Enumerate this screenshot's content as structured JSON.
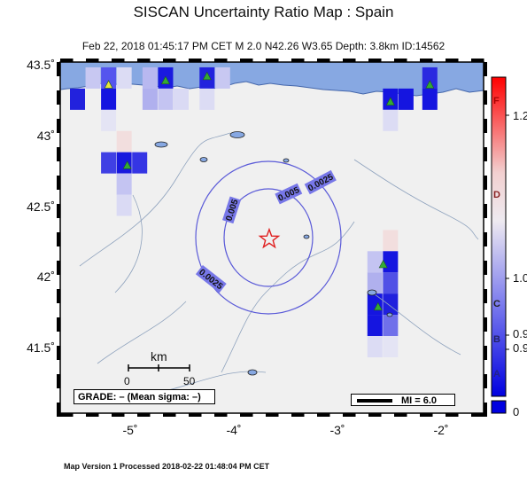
{
  "title": "SISCAN Uncertainty Ratio Map : Spain",
  "subtitle": "Feb 22, 2018 01:45:17 PM CET   M 2.0   N42.26 W3.65   Depth: 3.8km   ID:14562",
  "footer": "Map Version 1 Processed 2018-02-22 01:48:04 PM CET",
  "lat_labels": [
    "43.5˚",
    "43˚",
    "42.5˚",
    "42˚",
    "41.5˚"
  ],
  "lon_labels": [
    "-5˚",
    "-4˚",
    "-3˚",
    "-2˚"
  ],
  "contour_labels": [
    "0.0025",
    "0.005",
    "0.005",
    "0.0025"
  ],
  "grade_label": "GRADE: – (Mean sigma: –)",
  "mi_label": "MI = 6.0",
  "scale": {
    "title": "km",
    "zero": "0",
    "fifty": "50"
  },
  "colorbar": {
    "letters": [
      "F",
      "D",
      "C",
      "B",
      "A"
    ],
    "values": [
      "1.2",
      "1.0",
      "0.9",
      "0.9",
      "0"
    ]
  },
  "colors": {
    "sea": "#87a8e2",
    "land": "#f0f0f0",
    "contour": "#5a5ad8",
    "epicenter": "#e02020",
    "station": "#33aa33"
  },
  "epicenter": {
    "lat": 42.26,
    "lon": -3.65
  },
  "stations": [
    {
      "lon": -5.2,
      "lat": 43.35,
      "color": "#e8e83a"
    },
    {
      "lon": -4.65,
      "lat": 43.38,
      "color": "#33aa33"
    },
    {
      "lon": -4.25,
      "lat": 43.41,
      "color": "#33aa33"
    },
    {
      "lon": -2.48,
      "lat": 43.23,
      "color": "#33aa33"
    },
    {
      "lon": -2.1,
      "lat": 43.35,
      "color": "#33aa33"
    },
    {
      "lon": -5.02,
      "lat": 42.78,
      "color": "#33aa33"
    },
    {
      "lon": -2.55,
      "lat": 42.08,
      "color": "#33aa33"
    },
    {
      "lon": -2.6,
      "lat": 41.78,
      "color": "#33aa33"
    }
  ],
  "cells": [
    {
      "lon": -5.5,
      "lat": 43.25,
      "color": "#2222dd"
    },
    {
      "lon": -5.2,
      "lat": 43.25,
      "color": "#1515e0"
    },
    {
      "lon": -5.2,
      "lat": 43.4,
      "color": "#5555ee"
    },
    {
      "lon": -5.35,
      "lat": 43.4,
      "color": "#c8c8f2"
    },
    {
      "lon": -5.05,
      "lat": 43.4,
      "color": "#dcdcf4"
    },
    {
      "lon": -4.8,
      "lat": 43.4,
      "color": "#b8b8f0"
    },
    {
      "lon": -4.65,
      "lat": 43.4,
      "color": "#1a1adf"
    },
    {
      "lon": -4.8,
      "lat": 43.25,
      "color": "#b0b0ee"
    },
    {
      "lon": -4.65,
      "lat": 43.25,
      "color": "#c4c4f2"
    },
    {
      "lon": -4.5,
      "lat": 43.25,
      "color": "#dadaf4"
    },
    {
      "lon": -4.25,
      "lat": 43.4,
      "color": "#2222dd"
    },
    {
      "lon": -4.1,
      "lat": 43.4,
      "color": "#c8c8f2"
    },
    {
      "lon": -4.25,
      "lat": 43.25,
      "color": "#dcdcf4"
    },
    {
      "lon": -5.2,
      "lat": 43.1,
      "color": "#e4e4f4"
    },
    {
      "lon": -5.05,
      "lat": 42.95,
      "color": "#f2dede"
    },
    {
      "lon": -5.05,
      "lat": 42.8,
      "color": "#1818de"
    },
    {
      "lon": -4.9,
      "lat": 42.8,
      "color": "#3535e4"
    },
    {
      "lon": -5.2,
      "lat": 42.8,
      "color": "#4040e4"
    },
    {
      "lon": -5.05,
      "lat": 42.65,
      "color": "#c4c4f2"
    },
    {
      "lon": -5.05,
      "lat": 42.5,
      "color": "#dadaf4"
    },
    {
      "lon": -2.48,
      "lat": 43.25,
      "color": "#1515e0"
    },
    {
      "lon": -2.33,
      "lat": 43.25,
      "color": "#1515e0"
    },
    {
      "lon": -2.48,
      "lat": 43.1,
      "color": "#dcdcf4"
    },
    {
      "lon": -2.1,
      "lat": 43.4,
      "color": "#2a2ae0"
    },
    {
      "lon": -2.1,
      "lat": 43.25,
      "color": "#1515e0"
    },
    {
      "lon": -2.48,
      "lat": 42.25,
      "color": "#f2dede"
    },
    {
      "lon": -2.48,
      "lat": 42.1,
      "color": "#1515e0"
    },
    {
      "lon": -2.48,
      "lat": 41.95,
      "color": "#5050e6"
    },
    {
      "lon": -2.63,
      "lat": 41.95,
      "color": "#b0b0ee"
    },
    {
      "lon": -2.48,
      "lat": 41.8,
      "color": "#2020dd"
    },
    {
      "lon": -2.63,
      "lat": 41.8,
      "color": "#1515e0"
    },
    {
      "lon": -2.48,
      "lat": 41.65,
      "color": "#7070ea"
    },
    {
      "lon": -2.63,
      "lat": 41.65,
      "color": "#1515e0"
    },
    {
      "lon": -2.63,
      "lat": 41.5,
      "color": "#dcdcf4"
    },
    {
      "lon": -2.48,
      "lat": 41.5,
      "color": "#e4e4f4"
    },
    {
      "lon": -2.63,
      "lat": 42.1,
      "color": "#c4c4f2"
    }
  ]
}
